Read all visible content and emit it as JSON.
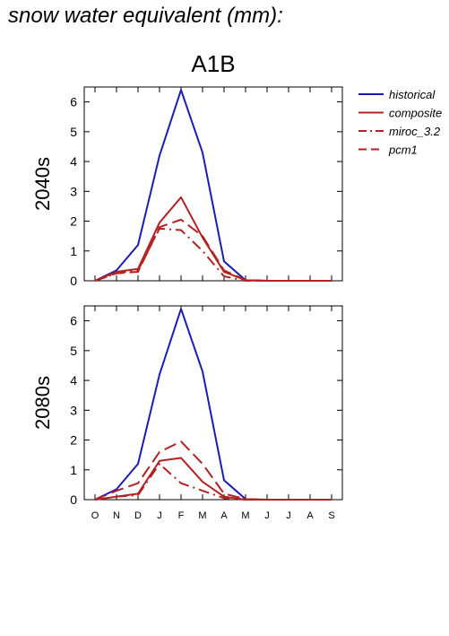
{
  "page": {
    "title": "snow water equivalent (mm):",
    "scenario": "A1B"
  },
  "colors": {
    "historical": "#1c1cb4",
    "scenario": "#b22222",
    "axis": "#000000"
  },
  "legend": {
    "placement": "top-right",
    "entries": [
      {
        "name": "historical",
        "style": "solid",
        "color": "#1c1cb4"
      },
      {
        "name": "composite",
        "style": "solid",
        "color": "#b22222"
      },
      {
        "name": "miroc_3.2",
        "style": "dashdot",
        "color": "#b22222"
      },
      {
        "name": "pcm1",
        "style": "dashed",
        "color": "#b22222"
      }
    ]
  },
  "chart_data": [
    {
      "type": "line",
      "ylabel": "2040s",
      "categories": [
        "O",
        "N",
        "D",
        "J",
        "F",
        "M",
        "A",
        "M",
        "J",
        "J",
        "A",
        "S"
      ],
      "ylim": [
        0,
        6.5
      ],
      "yticks": [
        0,
        1,
        2,
        3,
        4,
        5,
        6
      ],
      "x_tick_labels_shown": false,
      "series": [
        {
          "name": "historical",
          "style": "solid",
          "color": "#1c1cb4",
          "values": [
            0.0,
            0.35,
            1.2,
            4.2,
            6.4,
            4.3,
            0.65,
            0.02,
            0.0,
            0.0,
            0.0,
            0.0
          ]
        },
        {
          "name": "composite",
          "style": "solid",
          "color": "#b22222",
          "values": [
            0.0,
            0.3,
            0.4,
            1.95,
            2.8,
            1.45,
            0.3,
            0.02,
            0.0,
            0.0,
            0.0,
            0.0
          ]
        },
        {
          "name": "miroc_3.2",
          "style": "dashdot",
          "color": "#b22222",
          "values": [
            0.0,
            0.25,
            0.35,
            1.75,
            1.7,
            1.0,
            0.15,
            0.0,
            0.0,
            0.0,
            0.0,
            0.0
          ]
        },
        {
          "name": "pcm1",
          "style": "dashed",
          "color": "#b22222",
          "values": [
            0.0,
            0.25,
            0.3,
            1.8,
            2.05,
            1.5,
            0.35,
            0.02,
            0.0,
            0.0,
            0.0,
            0.0
          ]
        }
      ]
    },
    {
      "type": "line",
      "ylabel": "2080s",
      "categories": [
        "O",
        "N",
        "D",
        "J",
        "F",
        "M",
        "A",
        "M",
        "J",
        "J",
        "A",
        "S"
      ],
      "ylim": [
        0,
        6.5
      ],
      "yticks": [
        0,
        1,
        2,
        3,
        4,
        5,
        6
      ],
      "x_tick_labels_shown": true,
      "series": [
        {
          "name": "historical",
          "style": "solid",
          "color": "#1c1cb4",
          "values": [
            0.0,
            0.35,
            1.2,
            4.2,
            6.4,
            4.3,
            0.65,
            0.02,
            0.0,
            0.0,
            0.0,
            0.0
          ]
        },
        {
          "name": "composite",
          "style": "solid",
          "color": "#b22222",
          "values": [
            0.0,
            0.1,
            0.2,
            1.3,
            1.4,
            0.6,
            0.1,
            0.0,
            0.0,
            0.0,
            0.0,
            0.0
          ]
        },
        {
          "name": "miroc_3.2",
          "style": "dashdot",
          "color": "#b22222",
          "values": [
            0.0,
            0.1,
            0.15,
            1.2,
            0.55,
            0.3,
            0.05,
            0.0,
            0.0,
            0.0,
            0.0,
            0.0
          ]
        },
        {
          "name": "pcm1",
          "style": "dashed",
          "color": "#b22222",
          "values": [
            0.0,
            0.3,
            0.55,
            1.6,
            1.95,
            1.2,
            0.2,
            0.02,
            0.0,
            0.0,
            0.0,
            0.0
          ]
        }
      ]
    }
  ]
}
